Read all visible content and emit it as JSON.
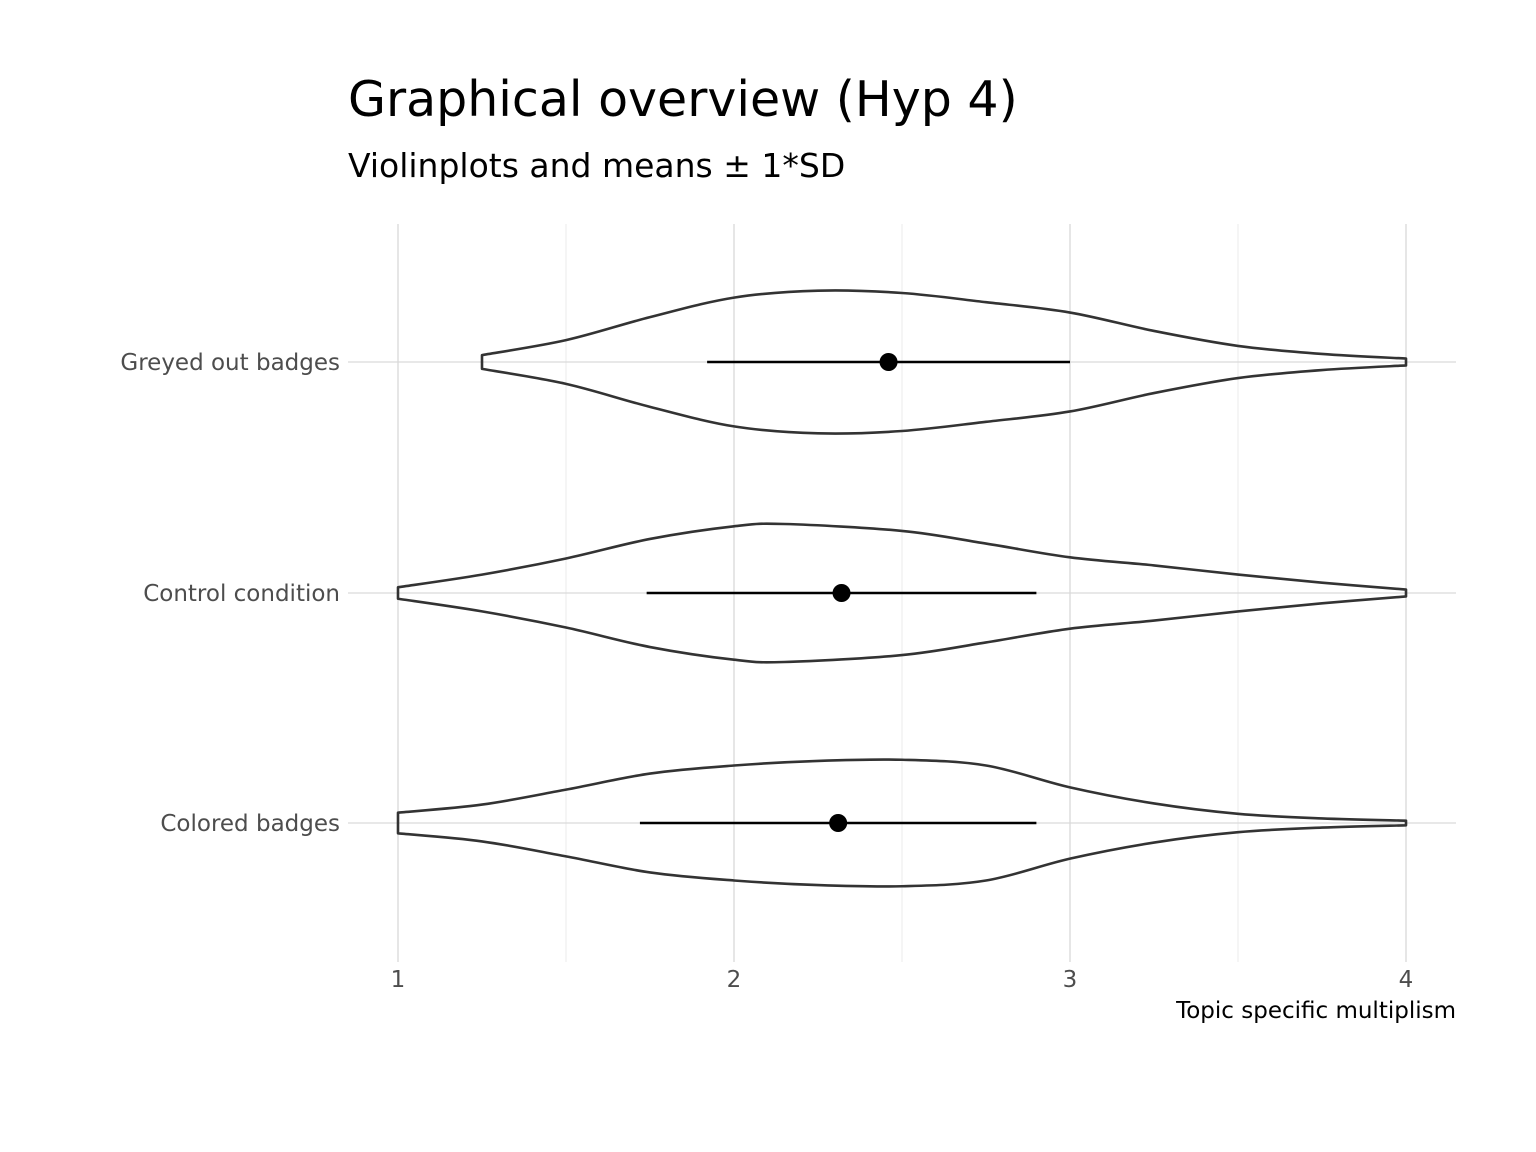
{
  "chart_data": {
    "type": "violin",
    "title": "Graphical overview (Hyp 4)",
    "subtitle": "Violinplots and means ± 1*SD",
    "xlabel": "Topic specific multiplism",
    "ylabel": "",
    "xlim": [
      1,
      4
    ],
    "x_ticks": [
      1,
      2,
      3,
      4
    ],
    "grid": true,
    "orientation": "horizontal",
    "categories": [
      "Greyed out badges",
      "Control condition",
      "Colored badges"
    ],
    "series": [
      {
        "category": "Greyed out badges",
        "mean": 2.46,
        "sd_low": 1.92,
        "sd_high": 3.0,
        "density": [
          [
            1.25,
            0.06
          ],
          [
            1.5,
            0.19
          ],
          [
            1.75,
            0.39
          ],
          [
            2.0,
            0.56
          ],
          [
            2.25,
            0.62
          ],
          [
            2.5,
            0.6
          ],
          [
            2.75,
            0.52
          ],
          [
            3.0,
            0.43
          ],
          [
            3.25,
            0.27
          ],
          [
            3.5,
            0.14
          ],
          [
            3.75,
            0.07
          ],
          [
            4.0,
            0.03
          ]
        ]
      },
      {
        "category": "Control condition",
        "mean": 2.32,
        "sd_low": 1.74,
        "sd_high": 2.9,
        "density": [
          [
            1.0,
            0.05
          ],
          [
            1.25,
            0.16
          ],
          [
            1.5,
            0.3
          ],
          [
            1.75,
            0.47
          ],
          [
            2.0,
            0.58
          ],
          [
            2.15,
            0.6
          ],
          [
            2.5,
            0.54
          ],
          [
            2.75,
            0.43
          ],
          [
            3.0,
            0.31
          ],
          [
            3.25,
            0.24
          ],
          [
            3.5,
            0.16
          ],
          [
            3.75,
            0.09
          ],
          [
            4.0,
            0.03
          ]
        ]
      },
      {
        "category": "Colored badges",
        "mean": 2.31,
        "sd_low": 1.72,
        "sd_high": 2.9,
        "density": [
          [
            1.0,
            0.09
          ],
          [
            1.25,
            0.16
          ],
          [
            1.5,
            0.29
          ],
          [
            1.75,
            0.43
          ],
          [
            2.0,
            0.5
          ],
          [
            2.25,
            0.54
          ],
          [
            2.5,
            0.55
          ],
          [
            2.75,
            0.5
          ],
          [
            3.0,
            0.31
          ],
          [
            3.25,
            0.17
          ],
          [
            3.5,
            0.08
          ],
          [
            3.75,
            0.04
          ],
          [
            4.0,
            0.02
          ]
        ]
      }
    ]
  }
}
